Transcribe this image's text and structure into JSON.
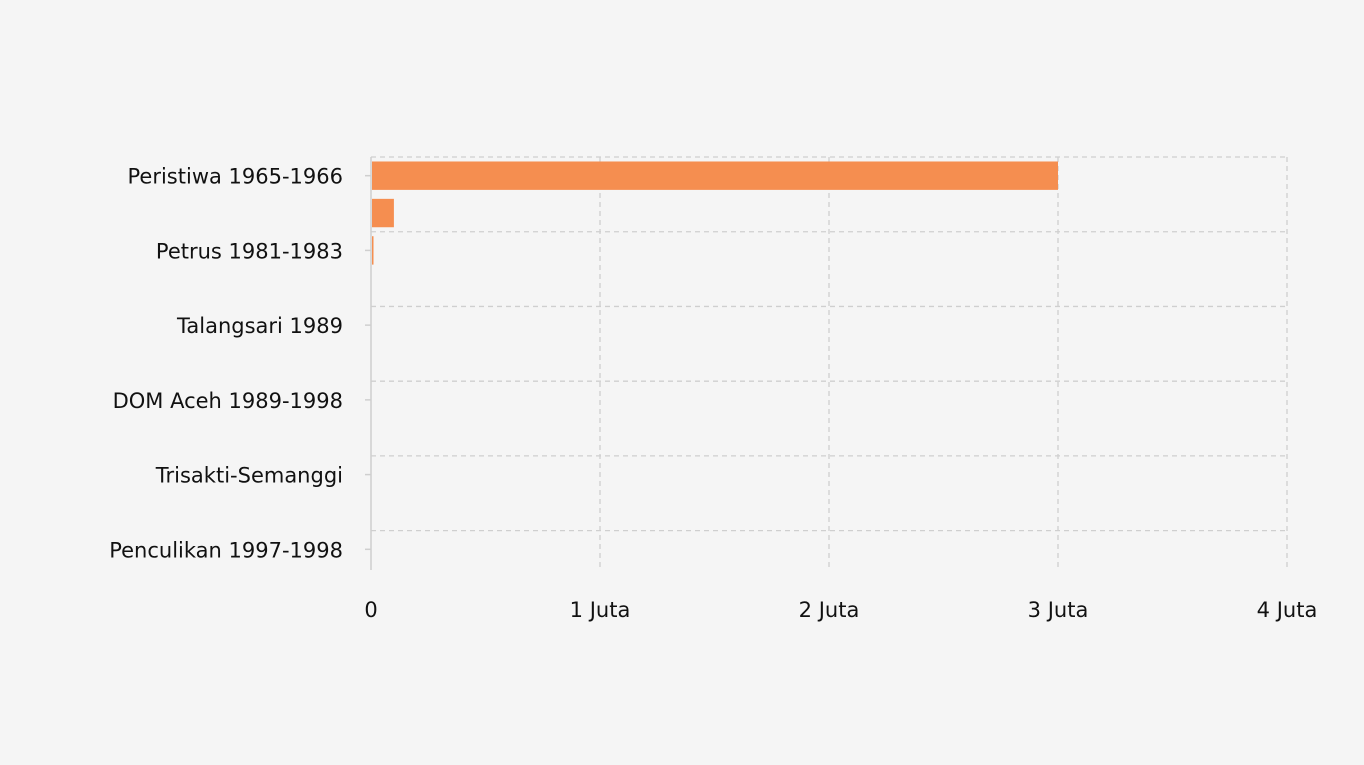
{
  "chart_data": {
    "type": "bar",
    "orientation": "horizontal",
    "title": "",
    "xlabel": "",
    "ylabel": "",
    "xlim": [
      0,
      4000000
    ],
    "x_ticks": [
      {
        "value": 0,
        "label": "0"
      },
      {
        "value": 1000000,
        "label": "1 Juta"
      },
      {
        "value": 2000000,
        "label": "2 Juta"
      },
      {
        "value": 3000000,
        "label": "3 Juta"
      },
      {
        "value": 4000000,
        "label": "4 Juta"
      }
    ],
    "categories": [
      "Peristiwa 1965-1966",
      "",
      "Petrus 1981-1983",
      "",
      "Talangsari 1989",
      "",
      "DOM Aceh 1989-1998",
      "",
      "Trisakti-Semanggi",
      "",
      "Penculikan 1997-1998"
    ],
    "values": [
      3000000,
      100000,
      10000,
      0,
      0,
      0,
      0,
      0,
      0,
      0,
      0
    ],
    "grid": true,
    "legend": "none",
    "colors": {
      "bar": "#f58e50",
      "grid": "#cfcfcf",
      "background": "#f5f5f5"
    }
  }
}
